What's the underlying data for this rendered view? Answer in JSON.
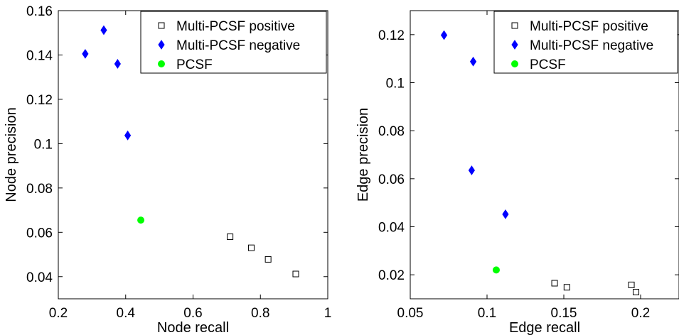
{
  "chart_data": [
    {
      "type": "scatter",
      "xlabel": "Node recall",
      "ylabel": "Node precision",
      "xlim": [
        0.2,
        1.0
      ],
      "ylim": [
        0.03,
        0.16
      ],
      "xticks": [
        "0.2",
        "0.4",
        "0.6",
        "0.8",
        "1"
      ],
      "xtick_values": [
        0.2,
        0.4,
        0.6,
        0.8,
        1.0
      ],
      "yticks": [
        "0.04",
        "0.06",
        "0.08",
        "0.1",
        "0.12",
        "0.14",
        "0.16"
      ],
      "ytick_values": [
        0.04,
        0.06,
        0.08,
        0.1,
        0.12,
        0.14,
        0.16
      ],
      "grid": false,
      "legend_position": "top-right",
      "series": [
        {
          "name": "Multi-PCSF positive",
          "marker": "open-square",
          "color": "#000000",
          "points": [
            {
              "x": 0.71,
              "y": 0.058
            },
            {
              "x": 0.773,
              "y": 0.053
            },
            {
              "x": 0.823,
              "y": 0.0478
            },
            {
              "x": 0.905,
              "y": 0.0412
            }
          ]
        },
        {
          "name": "Multi-PCSF negative",
          "marker": "diamond",
          "color": "#0000ff",
          "points": [
            {
              "x": 0.28,
              "y": 0.1405
            },
            {
              "x": 0.335,
              "y": 0.1512
            },
            {
              "x": 0.376,
              "y": 0.136
            },
            {
              "x": 0.406,
              "y": 0.1037
            }
          ]
        },
        {
          "name": "PCSF",
          "marker": "circle",
          "color": "#00ff00",
          "points": [
            {
              "x": 0.445,
              "y": 0.0655
            }
          ]
        }
      ]
    },
    {
      "type": "scatter",
      "xlabel": "Edge recall",
      "ylabel": "Edge precision",
      "xlim": [
        0.05,
        0.225
      ],
      "ylim": [
        0.01,
        0.13
      ],
      "xticks": [
        "0.05",
        "0.1",
        "0.15",
        "0.2"
      ],
      "xtick_values": [
        0.05,
        0.1,
        0.15,
        0.2
      ],
      "yticks": [
        "0.02",
        "0.04",
        "0.06",
        "0.08",
        "0.1",
        "0.12"
      ],
      "ytick_values": [
        0.02,
        0.04,
        0.06,
        0.08,
        0.1,
        0.12
      ],
      "grid": false,
      "legend_position": "top-right",
      "series": [
        {
          "name": "Multi-PCSF positive",
          "marker": "open-square",
          "color": "#000000",
          "points": [
            {
              "x": 0.144,
              "y": 0.0165
            },
            {
              "x": 0.152,
              "y": 0.0148
            },
            {
              "x": 0.194,
              "y": 0.0158
            },
            {
              "x": 0.197,
              "y": 0.0128
            }
          ]
        },
        {
          "name": "Multi-PCSF negative",
          "marker": "diamond",
          "color": "#0000ff",
          "points": [
            {
              "x": 0.072,
              "y": 0.1198
            },
            {
              "x": 0.091,
              "y": 0.1088
            },
            {
              "x": 0.09,
              "y": 0.0635
            },
            {
              "x": 0.112,
              "y": 0.0452
            }
          ]
        },
        {
          "name": "PCSF",
          "marker": "circle",
          "color": "#00ff00",
          "points": [
            {
              "x": 0.106,
              "y": 0.022
            }
          ]
        }
      ]
    }
  ]
}
